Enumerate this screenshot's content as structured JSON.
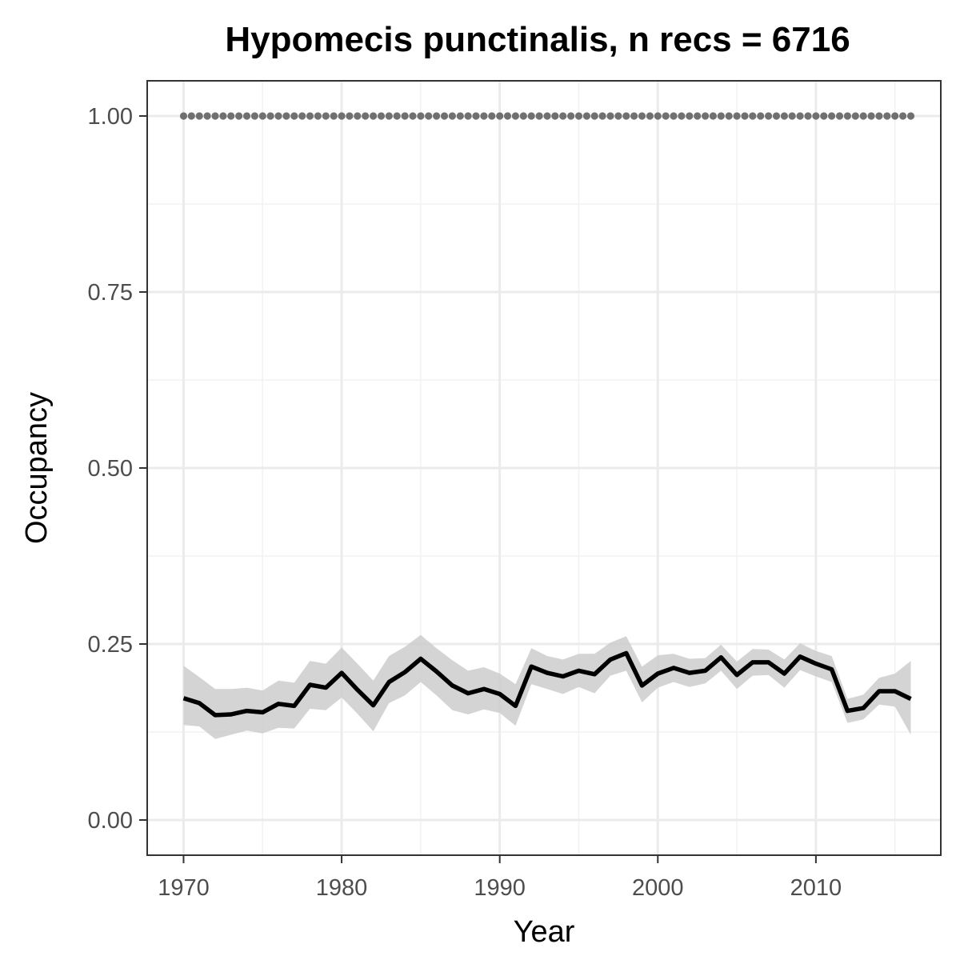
{
  "chart_data": {
    "type": "line",
    "title": "Hypomecis punctinalis, n recs = 6716",
    "xlabel": "Year",
    "ylabel": "Occupancy",
    "xlim": [
      1967.7,
      2017.9
    ],
    "ylim": [
      -0.05,
      1.05
    ],
    "x_ticks": [
      1970,
      1980,
      1990,
      2000,
      2010
    ],
    "x_tick_labels": [
      "1970",
      "1980",
      "1990",
      "2000",
      "2010"
    ],
    "y_ticks": [
      0,
      0.25,
      0.5,
      0.75,
      1.0
    ],
    "y_tick_labels": [
      "0.00",
      "0.25",
      "0.50",
      "0.75",
      "1.00"
    ],
    "grid": true,
    "x": [
      1970,
      1971,
      1972,
      1973,
      1974,
      1975,
      1976,
      1977,
      1978,
      1979,
      1980,
      1981,
      1982,
      1983,
      1984,
      1985,
      1986,
      1987,
      1988,
      1989,
      1990,
      1991,
      1992,
      1993,
      1994,
      1995,
      1996,
      1997,
      1998,
      1999,
      2000,
      2001,
      2002,
      2003,
      2004,
      2005,
      2006,
      2007,
      2008,
      2009,
      2010,
      2011,
      2012,
      2013,
      2014,
      2015,
      2016
    ],
    "series": [
      {
        "role": "mean",
        "color": "#000000",
        "values": [
          0.173,
          0.166,
          0.149,
          0.15,
          0.155,
          0.153,
          0.165,
          0.162,
          0.192,
          0.188,
          0.209,
          0.185,
          0.163,
          0.196,
          0.21,
          0.229,
          0.211,
          0.191,
          0.18,
          0.186,
          0.179,
          0.162,
          0.218,
          0.209,
          0.204,
          0.212,
          0.207,
          0.228,
          0.237,
          0.191,
          0.208,
          0.216,
          0.209,
          0.212,
          0.231,
          0.206,
          0.224,
          0.224,
          0.208,
          0.232,
          0.222,
          0.214,
          0.155,
          0.159,
          0.183,
          0.183,
          0.172
        ]
      },
      {
        "role": "lower",
        "color": "#cccccc",
        "values": [
          0.135,
          0.133,
          0.115,
          0.121,
          0.127,
          0.123,
          0.131,
          0.13,
          0.158,
          0.156,
          0.174,
          0.151,
          0.126,
          0.166,
          0.177,
          0.196,
          0.177,
          0.156,
          0.15,
          0.157,
          0.152,
          0.134,
          0.193,
          0.186,
          0.179,
          0.189,
          0.18,
          0.205,
          0.212,
          0.167,
          0.188,
          0.196,
          0.189,
          0.194,
          0.212,
          0.186,
          0.205,
          0.206,
          0.188,
          0.213,
          0.204,
          0.196,
          0.138,
          0.143,
          0.164,
          0.161,
          0.121
        ]
      },
      {
        "role": "upper",
        "color": "#cccccc",
        "values": [
          0.219,
          0.203,
          0.186,
          0.186,
          0.188,
          0.184,
          0.198,
          0.195,
          0.226,
          0.222,
          0.245,
          0.222,
          0.198,
          0.233,
          0.246,
          0.263,
          0.244,
          0.227,
          0.212,
          0.217,
          0.208,
          0.193,
          0.244,
          0.233,
          0.228,
          0.236,
          0.236,
          0.252,
          0.261,
          0.218,
          0.234,
          0.236,
          0.229,
          0.23,
          0.249,
          0.225,
          0.243,
          0.242,
          0.228,
          0.251,
          0.24,
          0.233,
          0.172,
          0.178,
          0.202,
          0.208,
          0.226
        ]
      },
      {
        "role": "reference",
        "style": "dotted",
        "color": "#707070",
        "values": [
          1,
          1,
          1,
          1,
          1,
          1,
          1,
          1,
          1,
          1,
          1,
          1,
          1,
          1,
          1,
          1,
          1,
          1,
          1,
          1,
          1,
          1,
          1,
          1,
          1,
          1,
          1,
          1,
          1,
          1,
          1,
          1,
          1,
          1,
          1,
          1,
          1,
          1,
          1,
          1,
          1,
          1,
          1,
          1,
          1,
          1,
          1
        ]
      }
    ]
  }
}
